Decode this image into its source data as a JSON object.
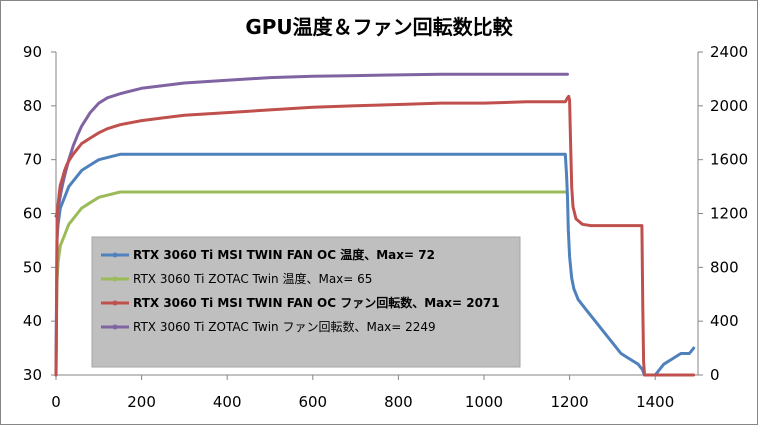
{
  "chart_data": {
    "type": "line",
    "title": "GPU温度＆ファン回転数比較",
    "xlabel": "",
    "ylabel": "",
    "xlim": [
      0,
      1500
    ],
    "ylim": [
      30,
      90
    ],
    "y2lim": [
      0,
      2400
    ],
    "x_ticks": [
      "0",
      "200",
      "400",
      "600",
      "800",
      "1000",
      "1200",
      "1400"
    ],
    "y_ticks": [
      "30",
      "40",
      "50",
      "60",
      "70",
      "80",
      "90"
    ],
    "y2_ticks": [
      "0",
      "400",
      "800",
      "1200",
      "1600",
      "2000",
      "2400"
    ],
    "grid": false,
    "legend_position": "center-left",
    "series": [
      {
        "name": "RTX 3060 Ti MSI TWIN FAN OC 温度、Max= 72",
        "axis": "left",
        "color": "#4F81BD",
        "bold": true,
        "x": [
          0,
          2,
          5,
          10,
          20,
          30,
          40,
          50,
          60,
          80,
          100,
          150,
          200,
          300,
          400,
          600,
          800,
          1000,
          1100,
          1190,
          1193,
          1195,
          1197,
          1200,
          1205,
          1210,
          1220,
          1240,
          1260,
          1280,
          1300,
          1320,
          1340,
          1360,
          1370,
          1375,
          1380,
          1400,
          1420,
          1440,
          1460,
          1480,
          1490
        ],
        "values": [
          30,
          55,
          58,
          61,
          63,
          65,
          66,
          67,
          68,
          69,
          70,
          71,
          71,
          71,
          71,
          71,
          71,
          71,
          71,
          71,
          67,
          63,
          57,
          52,
          48,
          46,
          44,
          42,
          40,
          38,
          36,
          34,
          33,
          32,
          31,
          30,
          30,
          30,
          32,
          33,
          34,
          34,
          35
        ]
      },
      {
        "name": "RTX 3060 Ti ZOTAC Twin 温度、Max= 65",
        "axis": "left",
        "color": "#9BBB59",
        "bold": false,
        "x": [
          0,
          2,
          5,
          10,
          20,
          30,
          40,
          50,
          60,
          80,
          100,
          150,
          200,
          300,
          400,
          600,
          800,
          1000,
          1100,
          1190
        ],
        "values": [
          30,
          47,
          51,
          54,
          56,
          58,
          59,
          60,
          61,
          62,
          63,
          64,
          64,
          64,
          64,
          64,
          64,
          64,
          64,
          64
        ]
      },
      {
        "name": "RTX 3060 Ti MSI TWIN FAN OC ファン回転数、Max= 2071",
        "axis": "right",
        "color": "#C0504D",
        "bold": true,
        "x": [
          0,
          3,
          5,
          8,
          10,
          15,
          20,
          25,
          30,
          40,
          50,
          60,
          70,
          80,
          100,
          120,
          150,
          200,
          250,
          300,
          400,
          500,
          600,
          700,
          800,
          900,
          1000,
          1100,
          1190,
          1195,
          1198,
          1200,
          1202,
          1205,
          1208,
          1215,
          1230,
          1250,
          1300,
          1350,
          1369,
          1371,
          1373,
          1375,
          1380,
          1490
        ],
        "values": [
          0,
          1180,
          1270,
          1360,
          1410,
          1460,
          1520,
          1560,
          1590,
          1640,
          1680,
          1720,
          1740,
          1760,
          1800,
          1830,
          1860,
          1890,
          1910,
          1930,
          1950,
          1970,
          1990,
          2000,
          2010,
          2020,
          2020,
          2030,
          2030,
          2060,
          2071,
          2040,
          1750,
          1400,
          1250,
          1160,
          1120,
          1110,
          1110,
          1110,
          1110,
          500,
          100,
          0,
          0,
          0
        ]
      },
      {
        "name": "RTX 3060 Ti ZOTAC Twin ファン回転数、Max= 2249",
        "axis": "right",
        "color": "#8064A2",
        "bold": false,
        "x": [
          0,
          3,
          5,
          10,
          15,
          20,
          30,
          40,
          50,
          60,
          70,
          80,
          100,
          120,
          150,
          200,
          250,
          300,
          400,
          500,
          600,
          700,
          800,
          900,
          1000,
          1100,
          1195
        ],
        "values": [
          1180,
          1200,
          1240,
          1330,
          1410,
          1480,
          1600,
          1700,
          1780,
          1850,
          1900,
          1950,
          2020,
          2060,
          2090,
          2130,
          2150,
          2170,
          2190,
          2210,
          2220,
          2225,
          2230,
          2235,
          2235,
          2235,
          2235
        ]
      }
    ]
  }
}
